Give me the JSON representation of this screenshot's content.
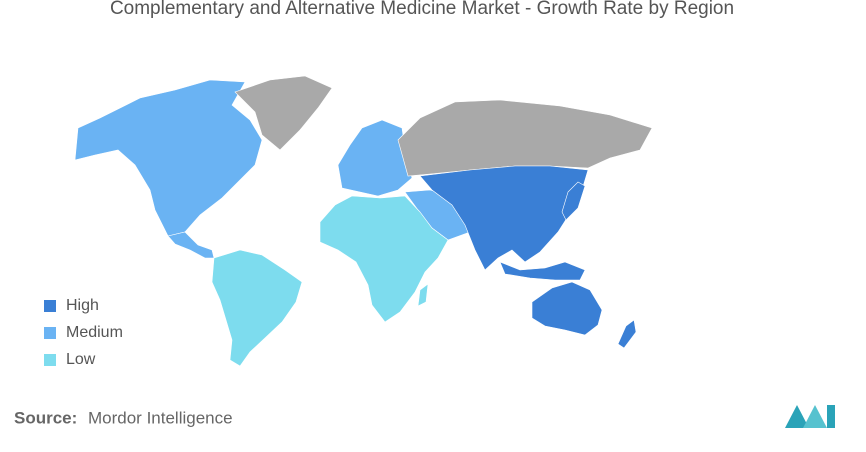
{
  "title": "Complementary and Alternative Medicine Market - Growth Rate by Region",
  "legend": [
    {
      "name": "High",
      "color": "#3a7fd5"
    },
    {
      "name": "Medium",
      "color": "#6ab3f3"
    },
    {
      "name": "Low",
      "color": "#7ddcee"
    }
  ],
  "source": {
    "label": "Source:",
    "text": "Mordor Intelligence"
  }
}
